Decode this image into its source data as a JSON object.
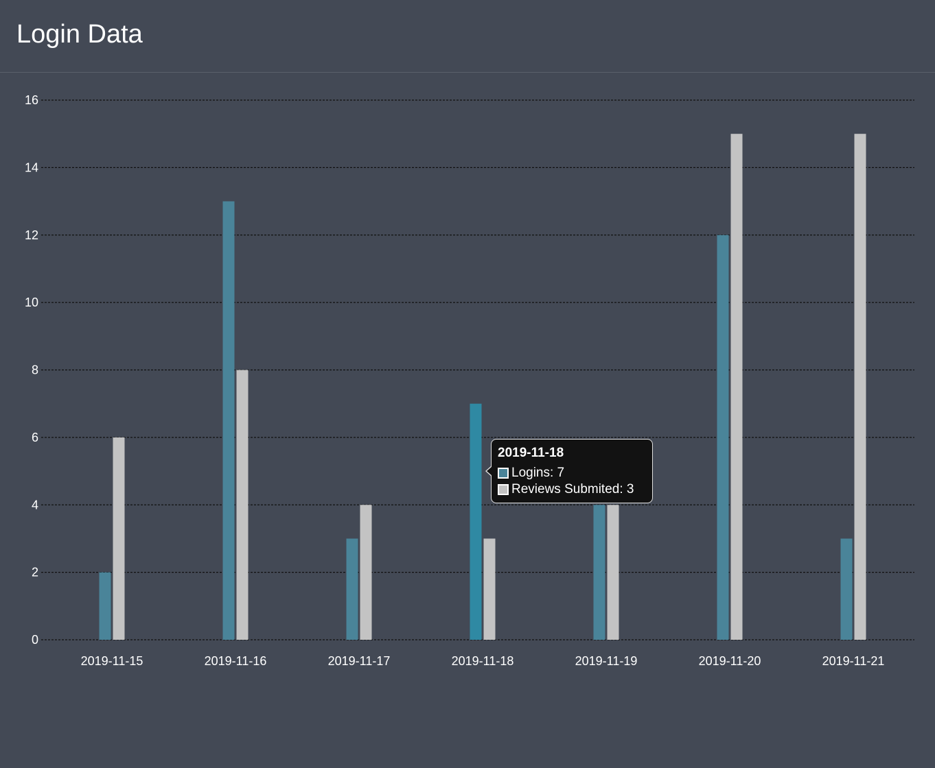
{
  "header": {
    "title": "Login Data"
  },
  "colors": {
    "background": "#434955",
    "logins": "#4a8499",
    "logins_highlight": "#2f89a3",
    "reviews": "#c3c3c3",
    "grid": "#111111"
  },
  "chart_data": {
    "type": "bar",
    "title": "",
    "xlabel": "",
    "ylabel": "",
    "categories": [
      "2019-11-15",
      "2019-11-16",
      "2019-11-17",
      "2019-11-18",
      "2019-11-19",
      "2019-11-20",
      "2019-11-21"
    ],
    "series": [
      {
        "name": "Logins",
        "values": [
          2,
          13,
          3,
          7,
          4,
          12,
          3
        ]
      },
      {
        "name": "Reviews Submited",
        "values": [
          6,
          8,
          4,
          3,
          4,
          15,
          15
        ]
      }
    ],
    "ylim": [
      0,
      16
    ],
    "yticks": [
      0,
      2,
      4,
      6,
      8,
      10,
      12,
      14,
      16
    ],
    "grid": true,
    "grid_style": "dashed",
    "legend": "none"
  },
  "tooltip": {
    "title": "2019-11-18",
    "rows": [
      {
        "label": "Logins: 7",
        "color": "#4a8499"
      },
      {
        "label": "Reviews Submited: 3",
        "color": "#c3c3c3"
      }
    ],
    "active_category_index": 3
  }
}
